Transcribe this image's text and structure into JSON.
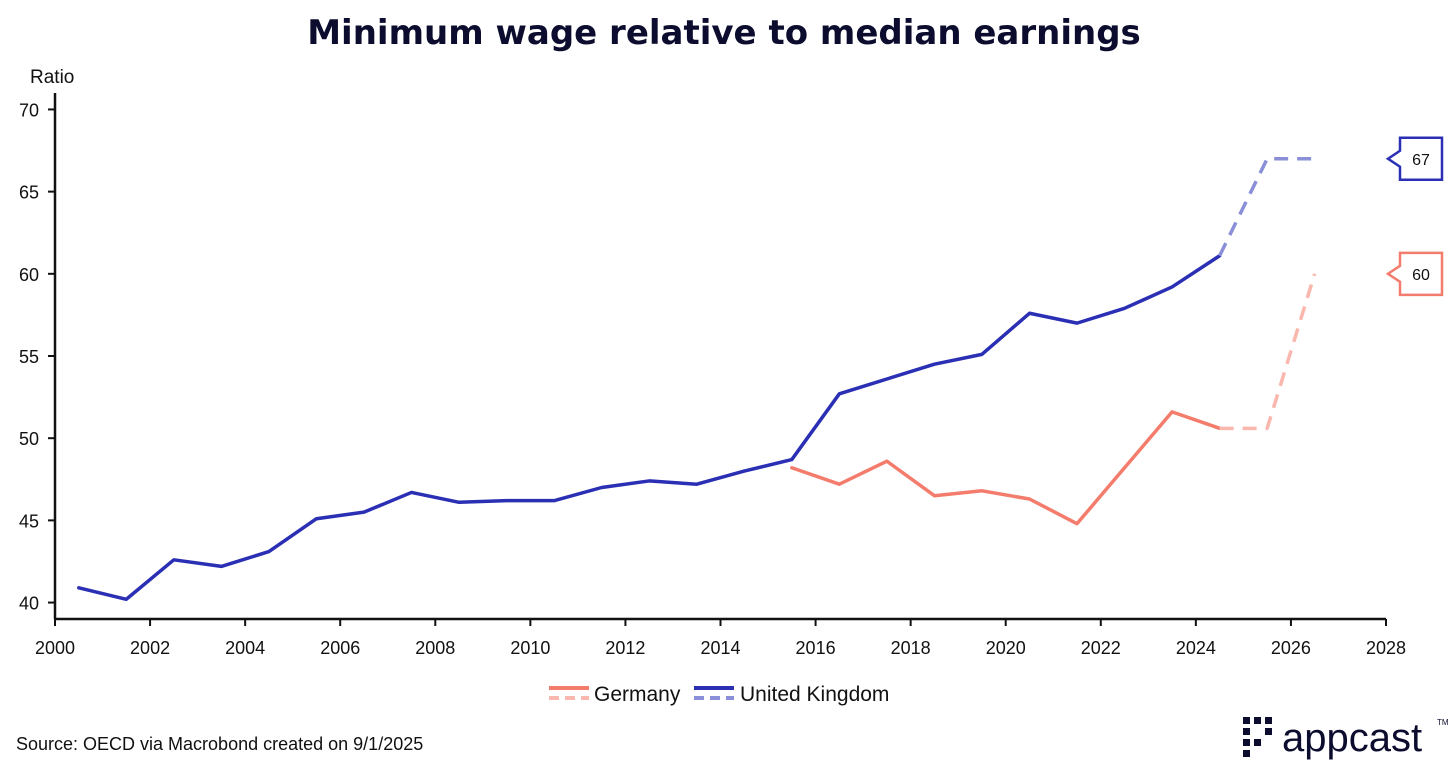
{
  "chart_data": {
    "type": "line",
    "title": "Minimum wage relative to median earnings",
    "ylabel": "Ratio",
    "xlabel": "",
    "xlim": [
      2000,
      2028
    ],
    "ylim": [
      39,
      71
    ],
    "x_ticks": [
      2000,
      2002,
      2004,
      2006,
      2008,
      2010,
      2012,
      2014,
      2016,
      2018,
      2020,
      2022,
      2024,
      2026,
      2028
    ],
    "y_ticks": [
      40,
      45,
      50,
      55,
      60,
      65,
      70
    ],
    "grid": false,
    "legend_position": "bottom-center",
    "series": [
      {
        "name": "Germany",
        "color": "#f47c6c",
        "forecast_color": "#f9b7ad",
        "x": [
          2015.5,
          2016.5,
          2017.5,
          2018.5,
          2019.5,
          2020.5,
          2021.5,
          2022.5,
          2023.5,
          2024.5
        ],
        "values": [
          48.2,
          47.2,
          48.6,
          46.5,
          46.8,
          46.3,
          44.8,
          48.2,
          51.6,
          50.6
        ],
        "forecast_x": [
          2024.5,
          2025.5,
          2026.5
        ],
        "forecast_values": [
          50.6,
          50.6,
          60.0
        ],
        "callout": "60"
      },
      {
        "name": "United Kingdom",
        "color": "#2a2fb4",
        "forecast_color": "#8a8fd8",
        "x": [
          2000.5,
          2001.5,
          2002.5,
          2003.5,
          2004.5,
          2005.5,
          2006.5,
          2007.5,
          2008.5,
          2009.5,
          2010.5,
          2011.5,
          2012.5,
          2013.5,
          2014.5,
          2015.5,
          2016.5,
          2017.5,
          2018.5,
          2019.5,
          2020.5,
          2021.5,
          2022.5,
          2023.5,
          2024.5
        ],
        "values": [
          40.9,
          40.2,
          42.6,
          42.2,
          43.1,
          45.1,
          45.5,
          46.7,
          46.1,
          46.2,
          46.2,
          47.0,
          47.4,
          47.2,
          48.0,
          48.7,
          52.7,
          53.6,
          54.5,
          55.1,
          57.6,
          57.0,
          57.9,
          59.2,
          61.1
        ],
        "forecast_x": [
          2024.5,
          2025.5,
          2026.5
        ],
        "forecast_values": [
          61.1,
          67.0,
          67.0
        ],
        "callout": "67"
      }
    ]
  },
  "footer": {
    "source": "Source: OECD via Macrobond created on 9/1/2025",
    "brand": "appcast",
    "brand_tm": "TM"
  }
}
